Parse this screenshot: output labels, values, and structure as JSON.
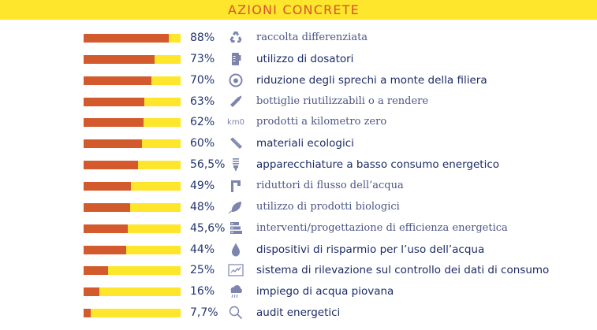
{
  "chart_data": {
    "type": "bar",
    "orientation": "horizontal",
    "title": "AZIONI CONCRETE",
    "xlim": [
      0,
      100
    ],
    "unit": "%",
    "colors": {
      "fill": "#d25a2d",
      "track": "#fde62b",
      "header": "#fde62b",
      "title": "#d4552e",
      "text": "#22356e",
      "icon": "#7d85ad"
    },
    "items": [
      {
        "value": 88,
        "value_label": "88%",
        "label": "raccolta differenziata",
        "style": "serif",
        "icon": "recycle-icon"
      },
      {
        "value": 73,
        "value_label": "73%",
        "label": "utilizzo di dosatori",
        "style": "sans",
        "icon": "dispenser-icon"
      },
      {
        "value": 70,
        "value_label": "70%",
        "label": "riduzione degli sprechi a monte della filiera",
        "style": "sans",
        "icon": "target-icon"
      },
      {
        "value": 63,
        "value_label": "63%",
        "label": "bottiglie riutilizzabili o a rendere",
        "style": "serif",
        "icon": "bottle-icon"
      },
      {
        "value": 62,
        "value_label": "62%",
        "label": "prodotti a kilometro zero",
        "style": "serif",
        "icon": "km0-icon",
        "icon_text": "km0"
      },
      {
        "value": 60,
        "value_label": "60%",
        "label": "materiali ecologici",
        "style": "sans",
        "icon": "plank-icon"
      },
      {
        "value": 56.5,
        "value_label": "56,5%",
        "label": "apparecchiature a basso consumo energetico",
        "style": "sans",
        "icon": "bulb-icon"
      },
      {
        "value": 49,
        "value_label": "49%",
        "label": "riduttori di flusso dell’acqua",
        "style": "serif",
        "icon": "faucet-icon"
      },
      {
        "value": 48,
        "value_label": "48%",
        "label": "utilizzo di prodotti biologici",
        "style": "serif",
        "icon": "leaf-icon"
      },
      {
        "value": 45.6,
        "value_label": "45,6%",
        "label": "interventi/progettazione di efficienza energetica",
        "style": "serif",
        "icon": "battery-stack-icon"
      },
      {
        "value": 44,
        "value_label": "44%",
        "label": "dispositivi di risparmio per l’uso dell’acqua",
        "style": "sans",
        "icon": "water-drop-icon"
      },
      {
        "value": 25,
        "value_label": "25%",
        "label": "sistema di rilevazione sul controllo dei dati di consumo",
        "style": "sans",
        "icon": "monitor-chart-icon"
      },
      {
        "value": 16,
        "value_label": "16%",
        "label": "impiego di acqua piovana",
        "style": "sans",
        "icon": "rain-cloud-icon"
      },
      {
        "value": 7.7,
        "value_label": "7,7%",
        "label": "audit energetici",
        "style": "sans",
        "icon": "magnifier-icon"
      }
    ]
  }
}
